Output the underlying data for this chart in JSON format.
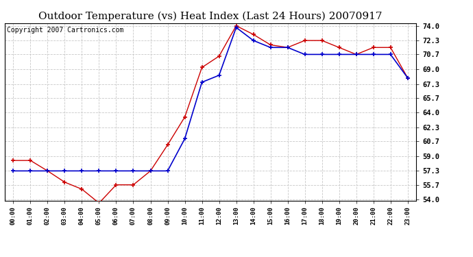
{
  "title": "Outdoor Temperature (vs) Heat Index (Last 24 Hours) 20070917",
  "copyright_text": "Copyright 2007 Cartronics.com",
  "x_labels": [
    "00:00",
    "01:00",
    "02:00",
    "03:00",
    "04:00",
    "05:00",
    "06:00",
    "07:00",
    "08:00",
    "09:00",
    "10:00",
    "11:00",
    "12:00",
    "13:00",
    "14:00",
    "15:00",
    "16:00",
    "17:00",
    "18:00",
    "19:00",
    "20:00",
    "21:00",
    "22:00",
    "23:00"
  ],
  "red_data": [
    58.5,
    58.5,
    57.3,
    56.0,
    55.2,
    53.6,
    55.7,
    55.7,
    57.3,
    60.3,
    63.5,
    69.2,
    70.5,
    74.0,
    73.0,
    71.8,
    71.5,
    72.3,
    72.3,
    71.5,
    70.7,
    71.5,
    71.5,
    68.0
  ],
  "blue_data": [
    57.3,
    57.3,
    57.3,
    57.3,
    57.3,
    57.3,
    57.3,
    57.3,
    57.3,
    57.3,
    61.0,
    67.5,
    68.3,
    73.8,
    72.3,
    71.5,
    71.5,
    70.7,
    70.7,
    70.7,
    70.7,
    70.7,
    70.7,
    68.0
  ],
  "ylim_min": 54.0,
  "ylim_max": 74.0,
  "yticks": [
    54.0,
    55.7,
    57.3,
    59.0,
    60.7,
    62.3,
    64.0,
    65.7,
    67.3,
    69.0,
    70.7,
    72.3,
    74.0
  ],
  "background_color": "#ffffff",
  "plot_bg_color": "#ffffff",
  "grid_color": "#c8c8c8",
  "red_color": "#cc0000",
  "blue_color": "#0000cc",
  "title_fontsize": 11,
  "copyright_fontsize": 7
}
